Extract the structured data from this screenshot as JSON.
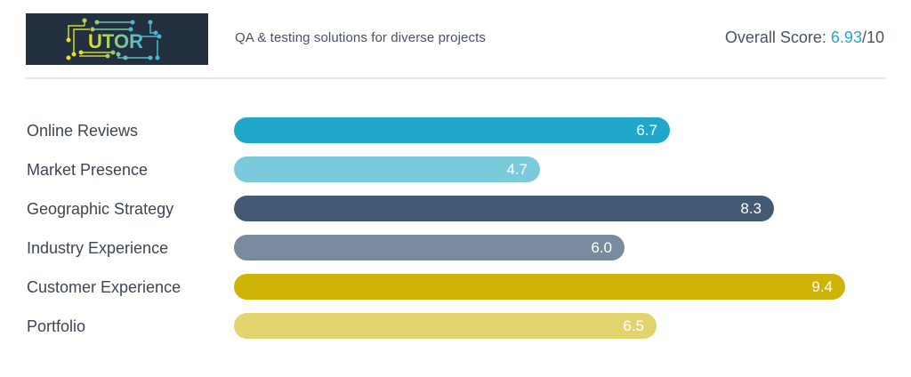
{
  "header": {
    "logo_text": "UTOR",
    "tagline": "QA & testing solutions for diverse projects",
    "overall_score_label": "Overall Score: ",
    "overall_score_value": "6.93",
    "overall_score_suffix": "/10"
  },
  "colors": {
    "logo_bg": "#22303f",
    "score_accent": "#2aa5c7"
  },
  "chart_data": {
    "type": "bar",
    "orientation": "horizontal",
    "title": "",
    "xlabel": "",
    "ylabel": "",
    "xlim": [
      0,
      10
    ],
    "grid": false,
    "categories": [
      "Online Reviews",
      "Market Presence",
      "Geographic Strategy",
      "Industry Experience",
      "Customer Experience",
      "Portfolio"
    ],
    "values": [
      6.7,
      4.7,
      8.3,
      6.0,
      9.4,
      6.5
    ],
    "value_labels": [
      "6.7",
      "4.7",
      "8.3",
      "6.0",
      "9.4",
      "6.5"
    ],
    "colors": [
      "#21a7c9",
      "#7bcadc",
      "#425a73",
      "#7a8ba0",
      "#cfb407",
      "#e2d36e"
    ]
  }
}
